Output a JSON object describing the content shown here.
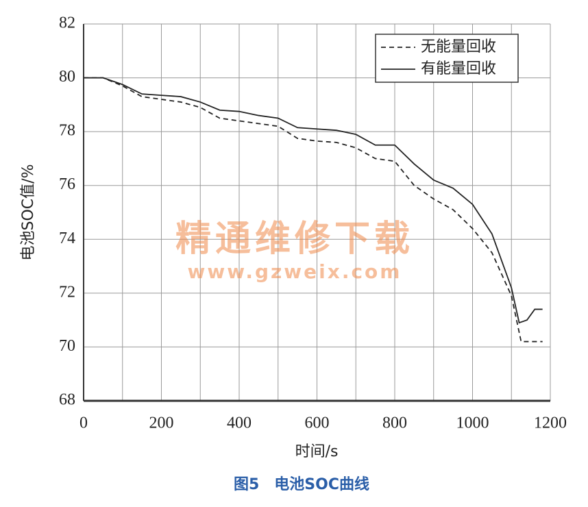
{
  "chart_data": {
    "type": "line",
    "xlabel": "时间/s",
    "ylabel": "电池SOC值/%",
    "caption": "图5　电池SOC曲线",
    "watermark": [
      "精通维修下载",
      "www.gzweix.com"
    ],
    "xlim": [
      0,
      1200
    ],
    "xticks": [
      0,
      200,
      400,
      600,
      800,
      1000,
      1200
    ],
    "xgrid": [
      100,
      300,
      500,
      700,
      900,
      1100
    ],
    "ylim": [
      68,
      82
    ],
    "yticks": [
      68,
      70,
      72,
      74,
      76,
      78,
      80,
      82
    ],
    "grid": true,
    "legend": "upper-right",
    "series": [
      {
        "name": "无能量回收",
        "color": "#222222",
        "dash": true,
        "x": [
          0,
          50,
          100,
          150,
          200,
          250,
          300,
          350,
          400,
          450,
          500,
          550,
          600,
          650,
          700,
          750,
          800,
          850,
          900,
          950,
          1000,
          1050,
          1100,
          1125,
          1150,
          1180
        ],
        "values": [
          80,
          80,
          79.7,
          79.3,
          79.2,
          79.1,
          78.9,
          78.5,
          78.4,
          78.3,
          78.2,
          77.75,
          77.65,
          77.6,
          77.4,
          77.0,
          76.9,
          76.0,
          75.5,
          75.1,
          74.4,
          73.5,
          71.9,
          70.2,
          70.2,
          70.2
        ]
      },
      {
        "name": "有能量回收",
        "color": "#222222",
        "dash": false,
        "x": [
          0,
          50,
          100,
          150,
          200,
          250,
          300,
          350,
          400,
          450,
          500,
          550,
          600,
          650,
          700,
          750,
          800,
          850,
          900,
          950,
          1000,
          1050,
          1100,
          1120,
          1140,
          1160,
          1180
        ],
        "values": [
          80,
          80,
          79.75,
          79.4,
          79.35,
          79.3,
          79.1,
          78.8,
          78.75,
          78.6,
          78.5,
          78.15,
          78.1,
          78.05,
          77.9,
          77.5,
          77.5,
          76.8,
          76.2,
          75.9,
          75.3,
          74.2,
          72.2,
          70.9,
          71.0,
          71.4,
          71.4
        ]
      }
    ]
  }
}
